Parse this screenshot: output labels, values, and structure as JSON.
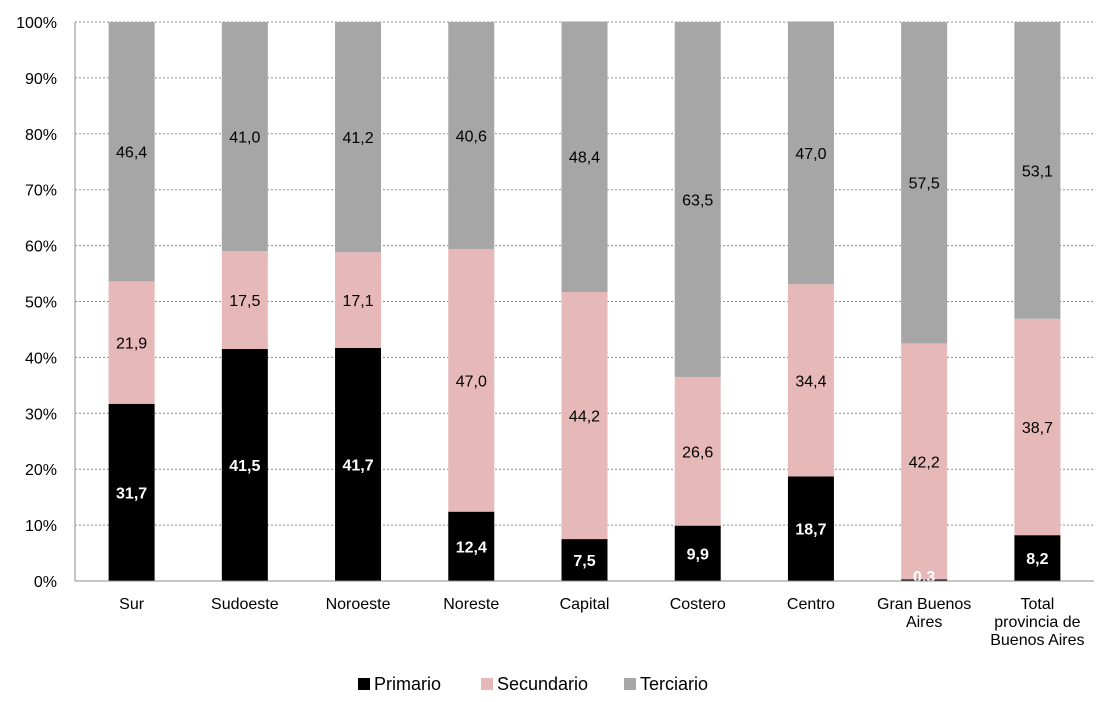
{
  "chart_data": {
    "type": "bar",
    "stacked": true,
    "percent_axis": true,
    "categories": [
      [
        "Sur"
      ],
      [
        "Sudoeste"
      ],
      [
        "Noroeste"
      ],
      [
        "Noreste"
      ],
      [
        "Capital"
      ],
      [
        "Costero"
      ],
      [
        "Centro"
      ],
      [
        "Gran Buenos",
        "Aires"
      ],
      [
        "Total",
        "provincia de",
        "Buenos Aires"
      ]
    ],
    "series": [
      {
        "name": "Primario",
        "color": "#000000",
        "label_color": "#ffffff",
        "label_bold": true,
        "values": [
          31.7,
          41.5,
          41.7,
          12.4,
          7.5,
          9.9,
          18.7,
          0.3,
          8.2
        ],
        "labels": [
          "31,7",
          "41,5",
          "41,7",
          "12,4",
          "7,5",
          "9,9",
          "18,7",
          "0,3",
          "8,2"
        ]
      },
      {
        "name": "Secundario",
        "color": "#e6b8b7",
        "label_color": "#000000",
        "label_bold": false,
        "values": [
          21.9,
          17.5,
          17.1,
          47.0,
          44.2,
          26.6,
          34.4,
          42.2,
          38.7
        ],
        "labels": [
          "21,9",
          "17,5",
          "17,1",
          "47,0",
          "44,2",
          "26,6",
          "34,4",
          "42,2",
          "38,7"
        ]
      },
      {
        "name": "Terciario",
        "color": "#a6a6a6",
        "label_color": "#000000",
        "label_bold": false,
        "values": [
          46.4,
          41.0,
          41.2,
          40.6,
          48.4,
          63.5,
          47.0,
          57.5,
          53.1
        ],
        "labels": [
          "46,4",
          "41,0",
          "41,2",
          "40,6",
          "48,4",
          "63,5",
          "47,0",
          "57,5",
          "53,1"
        ]
      }
    ],
    "y_ticks": [
      "0%",
      "10%",
      "20%",
      "30%",
      "40%",
      "50%",
      "60%",
      "70%",
      "80%",
      "90%",
      "100%"
    ],
    "ylim": [
      0,
      100
    ],
    "grid": true,
    "legend_position": "bottom"
  }
}
